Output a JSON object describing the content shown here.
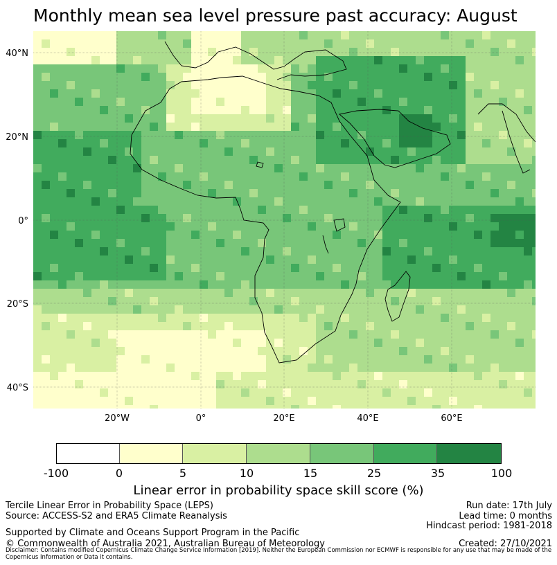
{
  "title": "Monthly mean sea level pressure past accuracy: August",
  "map": {
    "lat_labels": [
      "40°N",
      "20°N",
      "0°",
      "20°S",
      "40°S"
    ],
    "lon_labels": [
      "20°W",
      "0°",
      "20°E",
      "40°E",
      "60°E"
    ],
    "extent": {
      "lon": [
        -40,
        80
      ],
      "lat": [
        -45,
        45
      ]
    },
    "colors": [
      "#ffffff",
      "#ffffcc",
      "#d9f0a3",
      "#addd8e",
      "#78c679",
      "#41ab5d",
      "#238443"
    ],
    "ocean_default_class": 4
  },
  "colorbar": {
    "ticks": [
      "-100",
      "0",
      "5",
      "10",
      "15",
      "25",
      "35",
      "100"
    ],
    "colors": [
      "#ffffff",
      "#ffffcc",
      "#d9f0a3",
      "#addd8e",
      "#78c679",
      "#41ab5d",
      "#238443"
    ],
    "label": "Linear error in probability space skill score (%)"
  },
  "footer": {
    "line1": "Tercile Linear Error in Probability Space (LEPS)",
    "line2": "Source: ACCESS-S2 and ERA5 Climate Reanalysis",
    "line3": "Supported by Climate and Oceans Support Program in the Pacific",
    "line4": "© Commonwealth of Australia 2021, Australian Bureau of Meteorology",
    "run_date": "Run date: 17th July",
    "lead_time": "Lead time: 0 months",
    "hindcast": "Hindcast period: 1981-2018",
    "created": "Created: 27/10/2021",
    "disclaimer": "Disclaimer: Contains modified Copernicus Climate Change Service Information [2019]. Neither the European Commission nor ECMWF is responsible for any use that may be made of the Copernicus Information or Data it contains."
  }
}
